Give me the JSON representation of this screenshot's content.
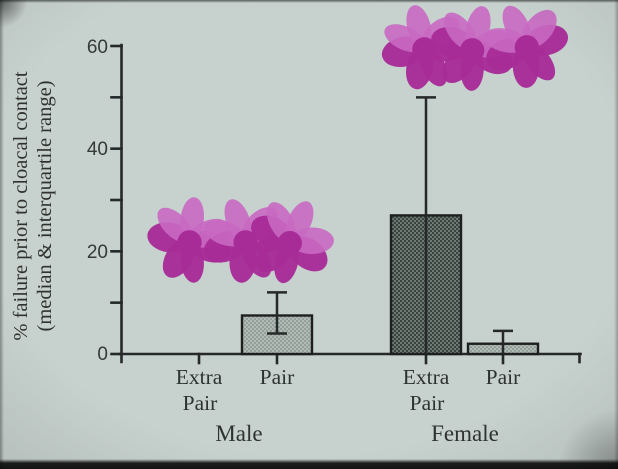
{
  "figure": {
    "ylabel_line1": "% failure prior to cloacal contact",
    "ylabel_line2": "(median & interquartile range)"
  },
  "chart_data": {
    "type": "bar",
    "title": "",
    "ylabel": "% failure prior to cloacal contact (median & interquartile range)",
    "ylim": [
      0,
      60
    ],
    "ytick_step": 10,
    "ytick_labels": [
      "0",
      "20",
      "40",
      "60"
    ],
    "ytick_label_values": [
      0,
      20,
      40,
      60
    ],
    "grid": "off",
    "legend": "none",
    "group_labels": [
      "Male",
      "Female"
    ],
    "category_lines": [
      [
        "Extra",
        "Pair"
      ],
      [
        "Pair"
      ],
      [
        "Extra",
        "Pair"
      ],
      [
        "Pair"
      ]
    ],
    "bars": [
      {
        "group": "Male",
        "category": "Extra Pair",
        "median": 0,
        "iqr_low": null,
        "iqr_high": null,
        "fill": "none"
      },
      {
        "group": "Male",
        "category": "Pair",
        "median": 7.5,
        "iqr_low": 4,
        "iqr_high": 12,
        "fill": "light"
      },
      {
        "group": "Female",
        "category": "Extra Pair",
        "median": 27,
        "iqr_low": 0,
        "iqr_high": 50,
        "fill": "dark"
      },
      {
        "group": "Female",
        "category": "Pair",
        "median": 2,
        "iqr_low": 0,
        "iqr_high": 4.5,
        "fill": "light"
      }
    ],
    "annotations": [
      {
        "name": "flower-cluster-male",
        "symbol": "flower",
        "count": 3,
        "above_group": "Male",
        "approx_value": 22
      },
      {
        "name": "flower-cluster-female",
        "symbol": "flower",
        "count": 3,
        "above_group": "Female",
        "approx_value": 59
      }
    ]
  },
  "colors": {
    "background": "#c7d1cd",
    "axis": "#26292a",
    "text": "#2e3331",
    "bar_light_base": "#b2bcb6",
    "bar_light_dot": "#75817b",
    "bar_dark_base": "#6e7a75",
    "bar_dark_dot": "#323d39",
    "bar_outline": "#1d201f",
    "flower_dark": "#a82c98",
    "flower_light": "#c868c2"
  }
}
